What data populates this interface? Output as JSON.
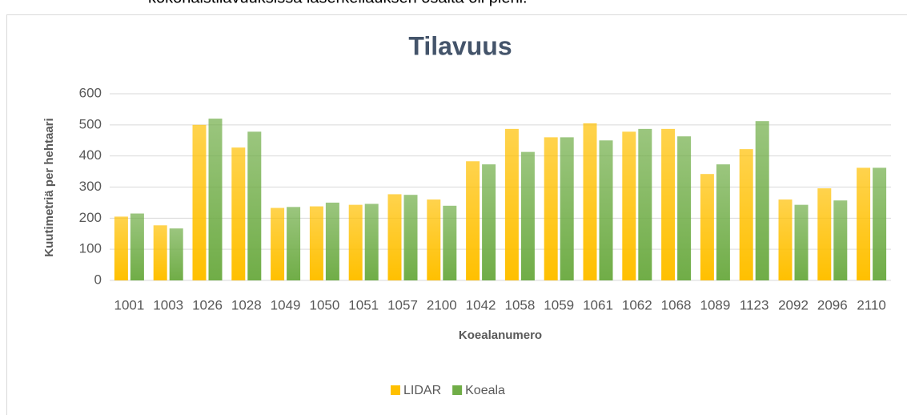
{
  "page_text": "kokonaistilavuuksissa laserkeilauksen osalta oli pieni.",
  "chart_data": {
    "type": "bar",
    "title": "Tilavuus",
    "x_label": "Koealanumero",
    "y_label": "Kuutimetriä per hehtaari",
    "categories": [
      "1001",
      "1003",
      "1026",
      "1028",
      "1049",
      "1050",
      "1051",
      "1057",
      "2100",
      "1042",
      "1058",
      "1059",
      "1061",
      "1062",
      "1068",
      "1089",
      "1123",
      "2092",
      "2096",
      "2110"
    ],
    "series": [
      {
        "name": "LIDAR",
        "color": "#ffc000",
        "values": [
          205,
          177,
          500,
          427,
          233,
          238,
          243,
          277,
          260,
          383,
          487,
          460,
          505,
          478,
          487,
          342,
          422,
          260,
          296,
          362
        ]
      },
      {
        "name": "Koeala",
        "color": "#70ad47",
        "values": [
          215,
          167,
          520,
          478,
          236,
          250,
          246,
          275,
          240,
          373,
          413,
          460,
          450,
          487,
          463,
          373,
          512,
          243,
          257,
          362
        ]
      }
    ],
    "ylim": [
      0,
      600
    ],
    "yticks": [
      0,
      100,
      200,
      300,
      400,
      500,
      600
    ],
    "grid": true,
    "legend": "bottom"
  }
}
